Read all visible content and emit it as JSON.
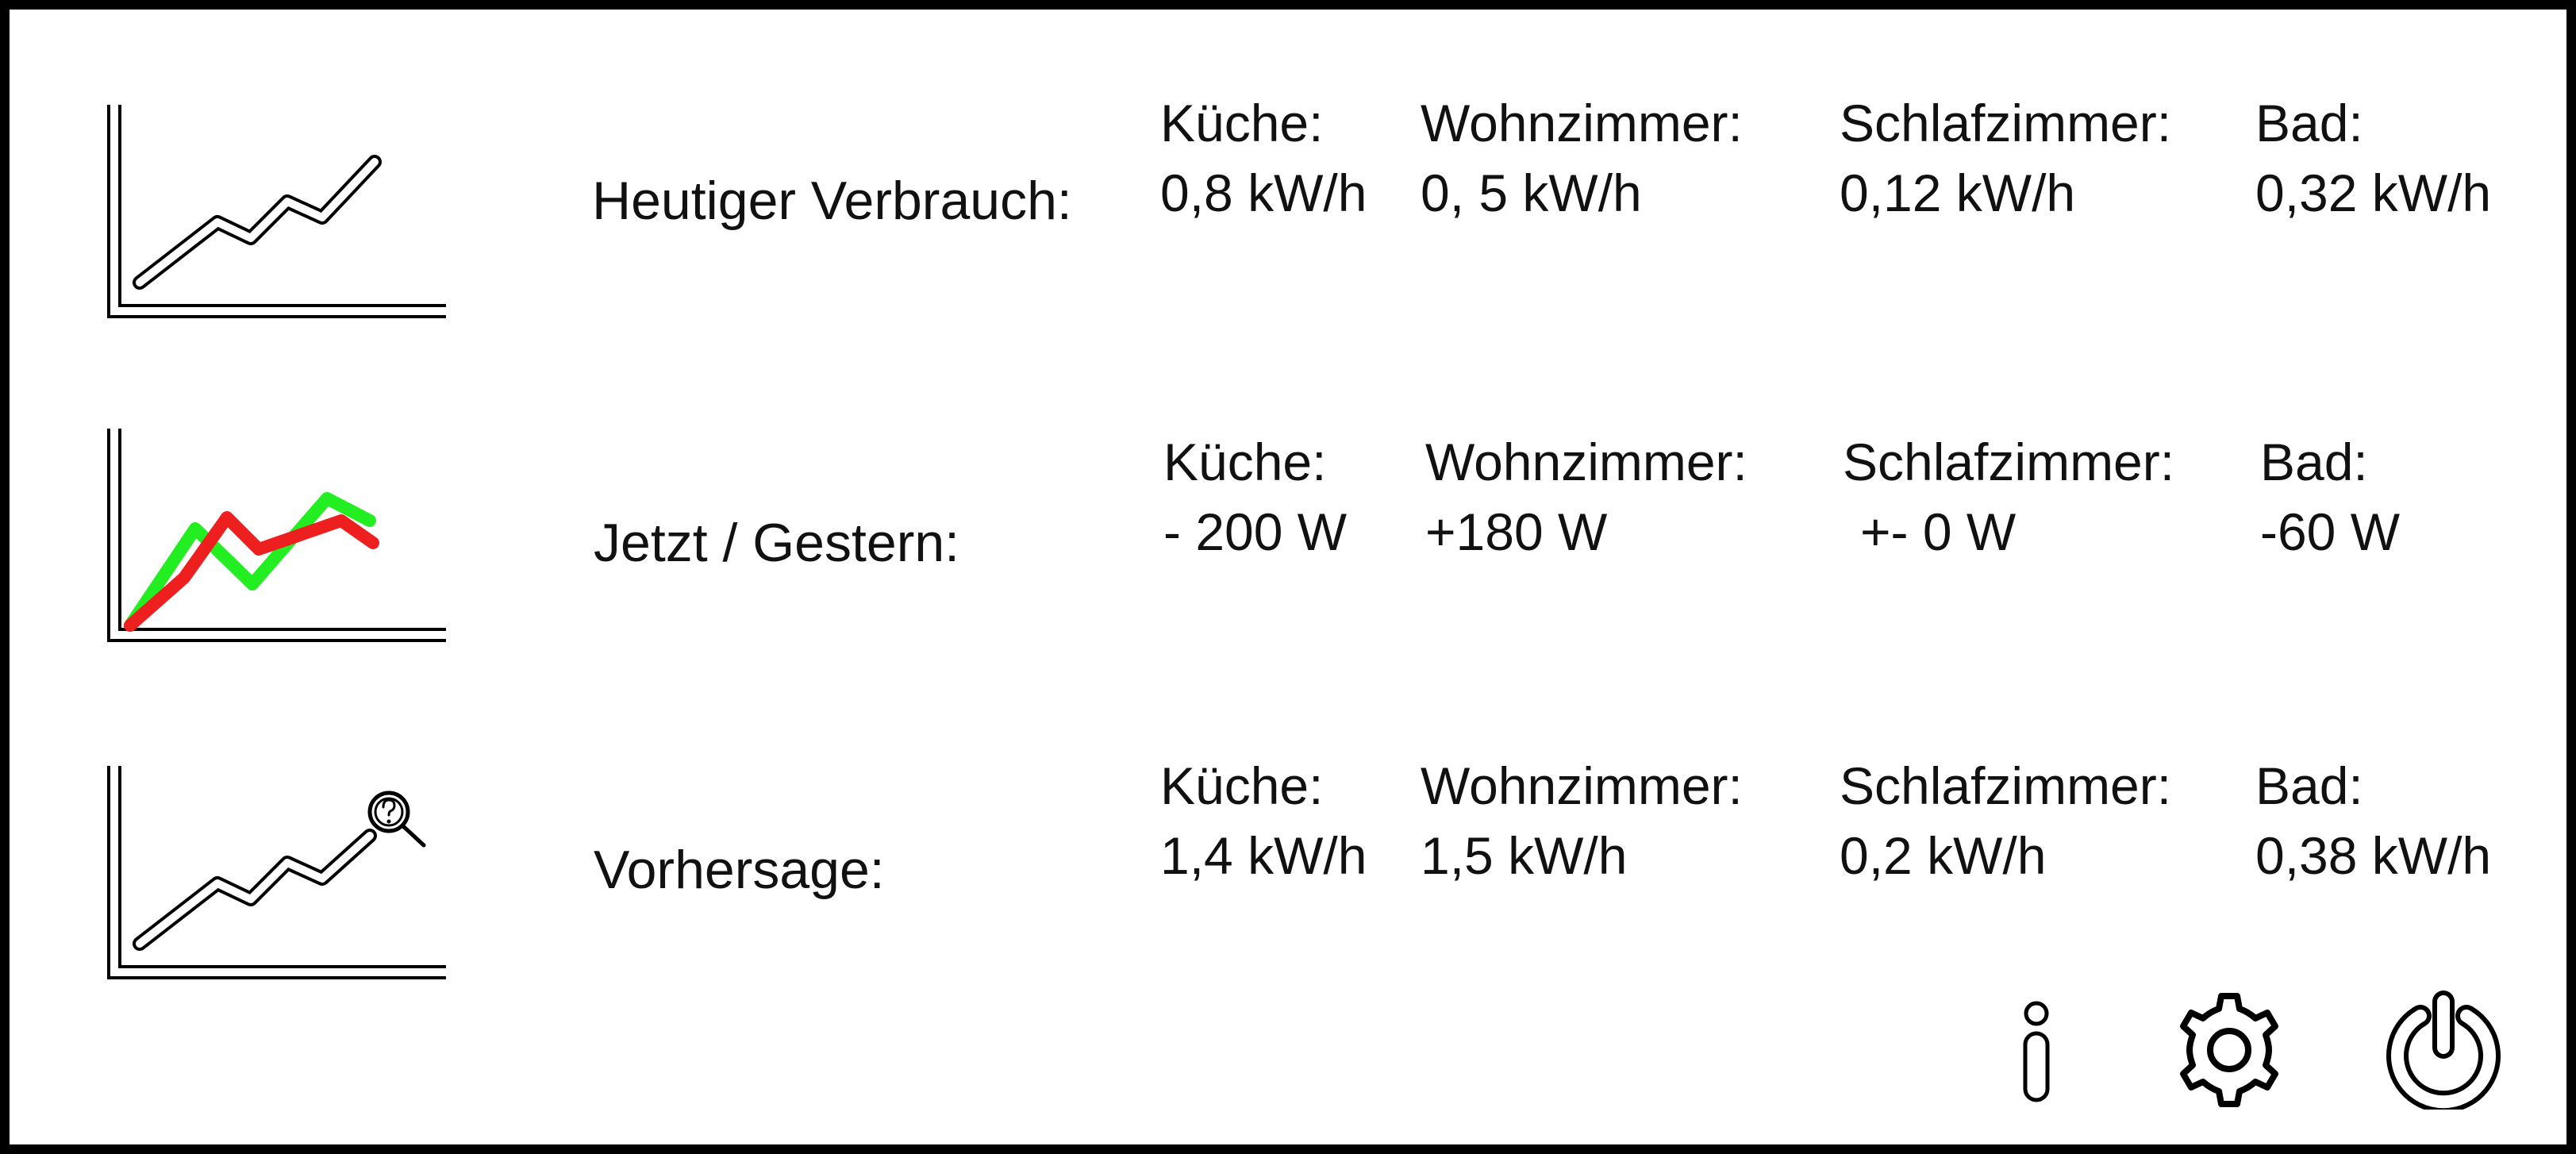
{
  "rows": [
    {
      "label": "Heutiger Verbrauch:",
      "icon": "line-chart-icon",
      "cells": [
        {
          "room": "Küche:",
          "value": "0,8 kW/h"
        },
        {
          "room": "Wohnzimmer:",
          "value": "0, 5 kW/h"
        },
        {
          "room": "Schlafzimmer:",
          "value": "0,12 kW/h"
        },
        {
          "room": "Bad:",
          "value": "0,32 kW/h"
        }
      ]
    },
    {
      "label": "Jetzt / Gestern:",
      "icon": "comparison-chart-icon",
      "cells": [
        {
          "room": "Küche:",
          "value": "- 200 W"
        },
        {
          "room": "Wohnzimmer:",
          "value": "+180 W"
        },
        {
          "room": "Schlafzimmer:",
          "value": "+- 0 W"
        },
        {
          "room": "Bad:",
          "value": "-60 W"
        }
      ]
    },
    {
      "label": "Vorhersage:",
      "icon": "forecast-chart-icon",
      "cells": [
        {
          "room": "Küche:",
          "value": "1,4 kW/h"
        },
        {
          "room": "Wohnzimmer:",
          "value": "1,5 kW/h"
        },
        {
          "room": "Schlafzimmer:",
          "value": "0,2 kW/h"
        },
        {
          "room": "Bad:",
          "value": "0,38 kW/h"
        }
      ]
    }
  ],
  "comparison_colors": {
    "now": "#22ee22",
    "yesterday": "#ee1f1f"
  },
  "buttons": {
    "info": "info-icon",
    "settings": "gear-icon",
    "power": "power-icon"
  }
}
